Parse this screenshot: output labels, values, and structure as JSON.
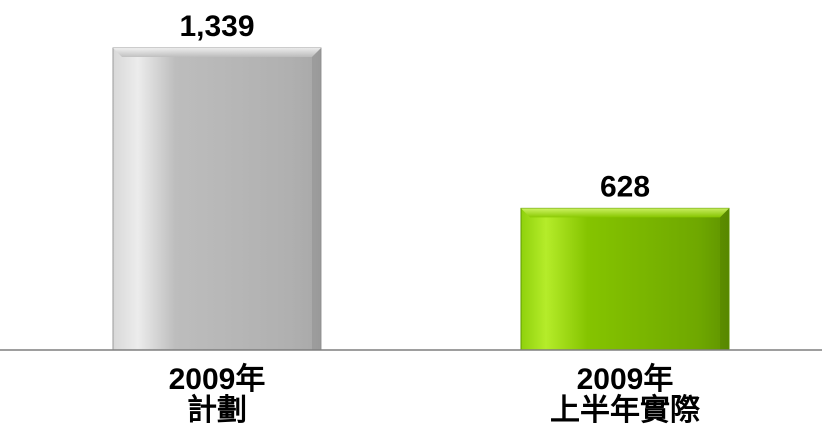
{
  "chart_data": {
    "type": "bar",
    "categories": [
      {
        "line1": "2009年",
        "line2": "計劃"
      },
      {
        "line1": "2009年",
        "line2": "上半年實際"
      }
    ],
    "values": [
      1339,
      628
    ],
    "value_labels": [
      "1,339",
      "628"
    ],
    "colors": [
      "#b3b3b3",
      "#7fb800"
    ],
    "ylim": [
      0,
      1339
    ],
    "grid": false,
    "legend": "none",
    "title": "",
    "xlabel": "",
    "ylabel": ""
  }
}
